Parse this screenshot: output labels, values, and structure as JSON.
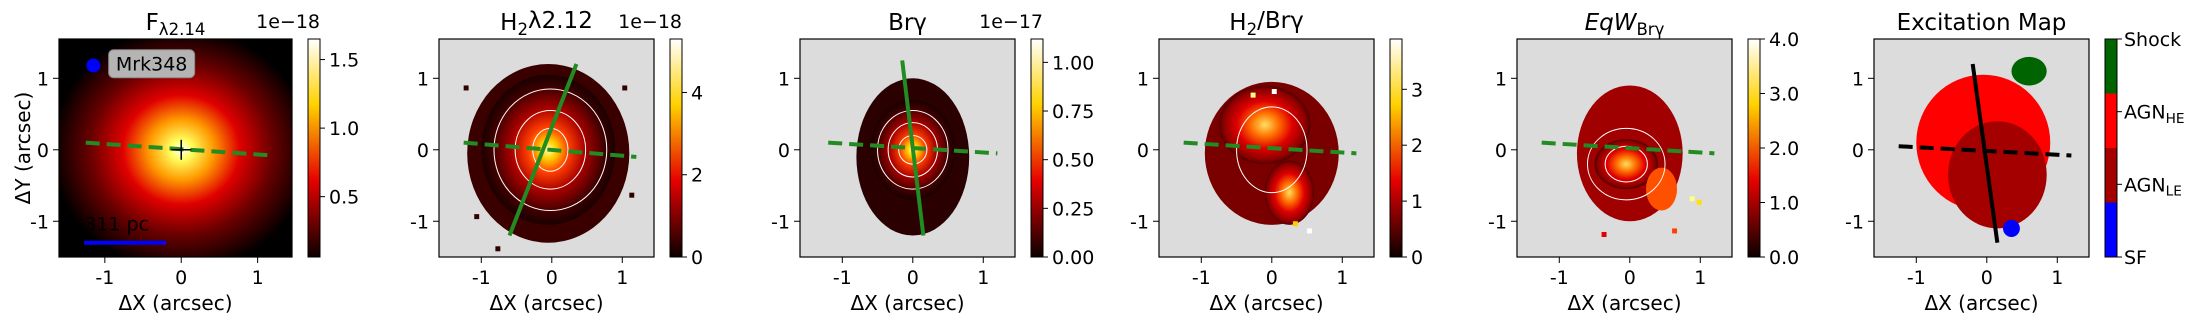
{
  "chart_data": [
    {
      "type": "heatmap",
      "title": [
        {
          "text": "F"
        },
        {
          "text": "λ2.14",
          "sub": true
        }
      ],
      "xlabel": "ΔX (arcsec)",
      "ylabel": "ΔY (arcsec)",
      "xlim": [
        -1.6,
        1.45
      ],
      "ylim": [
        -1.5,
        1.55
      ],
      "xticks": [
        -1,
        0,
        1
      ],
      "yticks": [
        -1,
        0,
        1
      ],
      "colormap": "hot",
      "colorbar": {
        "clim": [
          0.06,
          1.65
        ],
        "ticks": [
          0.5,
          {
            "value": 1,
            "label": "1.0"
          },
          1.5
        ],
        "offset": "1e−18"
      },
      "annotations": {
        "galaxy": "Mrk348",
        "scale": "311 pc"
      }
    },
    {
      "type": "heatmap",
      "title": [
        {
          "text": "H"
        },
        {
          "text": "2",
          "sub": true
        },
        {
          "text": "λ2.12"
        }
      ],
      "xlabel": "ΔX (arcsec)",
      "xlim": [
        -1.6,
        1.45
      ],
      "ylim": [
        -1.5,
        1.55
      ],
      "xticks": [
        -1,
        0,
        1
      ],
      "yticks": [
        -1,
        0,
        1
      ],
      "colormap": "hot",
      "colorbar": {
        "clim": [
          0,
          5.3
        ],
        "ticks": [
          0,
          2,
          4
        ],
        "offset": "1e−18"
      }
    },
    {
      "type": "heatmap",
      "title": [
        {
          "text": "Brγ"
        }
      ],
      "xlabel": "ΔX (arcsec)",
      "xlim": [
        -1.6,
        1.45
      ],
      "ylim": [
        -1.5,
        1.55
      ],
      "xticks": [
        -1,
        0,
        1
      ],
      "yticks": [
        -1,
        0,
        1
      ],
      "colormap": "hot",
      "colorbar": {
        "clim": [
          0,
          1.12
        ],
        "ticks": [
          {
            "value": 0,
            "label": "0.00"
          },
          0.25,
          {
            "value": 0.5,
            "label": "0.50"
          },
          0.75,
          {
            "value": 1,
            "label": "1.00"
          }
        ],
        "offset": "1e−17"
      }
    },
    {
      "type": "heatmap",
      "title": [
        {
          "text": "H"
        },
        {
          "text": "2",
          "sub": true
        },
        {
          "text": "/Brγ"
        }
      ],
      "xlabel": "ΔX (arcsec)",
      "xlim": [
        -1.6,
        1.45
      ],
      "ylim": [
        -1.5,
        1.55
      ],
      "xticks": [
        -1,
        0,
        1
      ],
      "yticks": [
        -1,
        0,
        1
      ],
      "colormap": "hot",
      "colorbar": {
        "clim": [
          0,
          3.9
        ],
        "ticks": [
          0,
          1,
          2,
          3
        ]
      }
    },
    {
      "type": "heatmap",
      "title": [
        {
          "text": "EqW",
          "italic": true
        },
        {
          "text": "Brγ",
          "sub": true
        }
      ],
      "xlabel": "ΔX (arcsec)",
      "xlim": [
        -1.6,
        1.45
      ],
      "ylim": [
        -1.5,
        1.55
      ],
      "xticks": [
        -1,
        0,
        1
      ],
      "yticks": [
        -1,
        0,
        1
      ],
      "colormap": "hot",
      "colorbar": {
        "clim": [
          0,
          4
        ],
        "ticks": [
          {
            "value": 0,
            "label": "0.0"
          },
          {
            "value": 1,
            "label": "1.0"
          },
          {
            "value": 2,
            "label": "2.0"
          },
          {
            "value": 3,
            "label": "3.0"
          },
          {
            "value": 4,
            "label": "4.0"
          }
        ]
      }
    },
    {
      "type": "category-map",
      "title": [
        {
          "text": "Excitation Map"
        }
      ],
      "xlabel": "ΔX (arcsec)",
      "xlim": [
        -1.6,
        1.45
      ],
      "ylim": [
        -1.5,
        1.55
      ],
      "xticks": [
        -1,
        0,
        1
      ],
      "yticks": [
        -1,
        0,
        1
      ],
      "colorbar": {
        "categories": [
          [
            {
              "text": "Shock"
            }
          ],
          [
            {
              "text": "AGN"
            },
            {
              "text": "HE",
              "sub": true
            }
          ],
          [
            {
              "text": "AGN"
            },
            {
              "text": "LE",
              "sub": true
            }
          ],
          [
            {
              "text": "SF"
            }
          ]
        ],
        "colors": [
          "#006400",
          "#ff0000",
          "#a50000",
          "#0000ff"
        ]
      }
    }
  ]
}
